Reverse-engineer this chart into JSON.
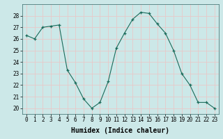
{
  "x": [
    0,
    1,
    2,
    3,
    4,
    5,
    6,
    7,
    8,
    9,
    10,
    11,
    12,
    13,
    14,
    15,
    16,
    17,
    18,
    19,
    20,
    21,
    22,
    23
  ],
  "y": [
    26.3,
    26.0,
    27.0,
    27.1,
    27.2,
    23.3,
    22.2,
    20.8,
    20.0,
    20.5,
    22.3,
    25.2,
    26.5,
    27.7,
    28.3,
    28.2,
    27.3,
    26.5,
    25.0,
    23.0,
    22.0,
    20.5,
    20.5,
    20.0
  ],
  "xlim": [
    -0.5,
    23.5
  ],
  "ylim": [
    19.5,
    29.0
  ],
  "yticks": [
    20,
    21,
    22,
    23,
    24,
    25,
    26,
    27,
    28
  ],
  "xticks": [
    0,
    1,
    2,
    3,
    4,
    5,
    6,
    7,
    8,
    9,
    10,
    11,
    12,
    13,
    14,
    15,
    16,
    17,
    18,
    19,
    20,
    21,
    22,
    23
  ],
  "xlabel": "Humidex (Indice chaleur)",
  "line_color": "#1a6b5a",
  "marker": "+",
  "marker_size": 3,
  "bg_color": "#cce8e8",
  "grid_color": "#e8c8c8",
  "tick_fontsize": 5.5,
  "xlabel_fontsize": 7
}
